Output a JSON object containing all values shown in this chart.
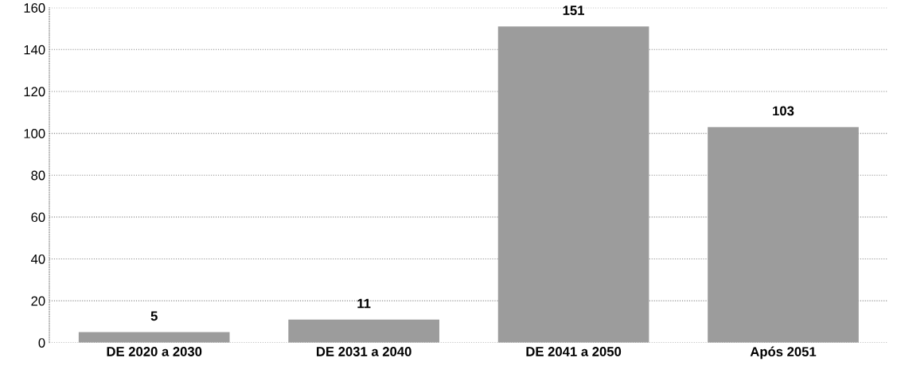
{
  "chart_data": {
    "type": "bar",
    "categories": [
      "DE 2020 a 2030",
      "DE 2031 a 2040",
      "DE 2041 a 2050",
      "Após 2051"
    ],
    "values": [
      5,
      11,
      151,
      103
    ],
    "color": "#9c9c9c",
    "ylim": [
      0,
      160
    ],
    "yticks": [
      0,
      20,
      40,
      60,
      80,
      100,
      120,
      140,
      160
    ],
    "grid": "y",
    "data_labels": true
  }
}
